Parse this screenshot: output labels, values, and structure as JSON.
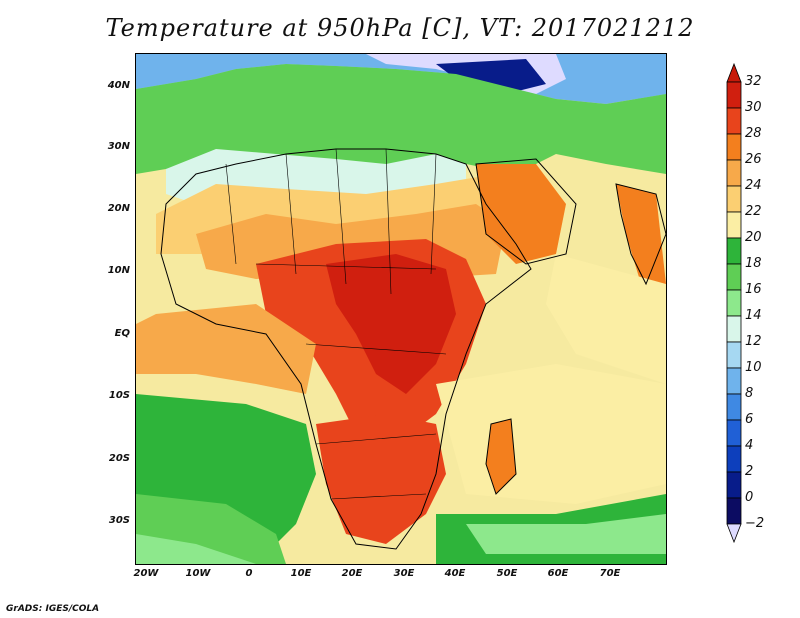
{
  "title": "Temperature at 950hPa [C], VT: 2017021212",
  "credit": "GrADS: IGES/COLA",
  "map": {
    "variable": "Temperature at 950hPa",
    "units": "C",
    "valid_time": "2017021212",
    "region": "Africa / Middle East",
    "lat_labels": [
      "40N",
      "30N",
      "20N",
      "10N",
      "EQ",
      "10S",
      "20S",
      "30S"
    ],
    "lon_labels": [
      "20W",
      "10W",
      "0",
      "10E",
      "20E",
      "30E",
      "40E",
      "50E",
      "60E",
      "70E"
    ],
    "lat_values": [
      40,
      30,
      20,
      10,
      0,
      -10,
      -20,
      -30
    ],
    "lon_values": [
      -20,
      -10,
      0,
      10,
      20,
      30,
      40,
      50,
      60,
      70
    ],
    "lat_range": [
      -36.5,
      45
    ],
    "lon_range": [
      -23,
      80
    ]
  },
  "legend": {
    "levels": [
      "32",
      "30",
      "28",
      "26",
      "24",
      "22",
      "20",
      "18",
      "16",
      "14",
      "12",
      "10",
      "8",
      "6",
      "4",
      "2",
      "0",
      "−2"
    ],
    "colors": [
      "#d01f0f",
      "#e8441c",
      "#f37f1e",
      "#f7a94a",
      "#fbcf72",
      "#fbeea4",
      "#2eb43a",
      "#5fce55",
      "#8de88c",
      "#d9f6ea",
      "#a6d8f2",
      "#6fb3ec",
      "#3f89e3",
      "#2060d6",
      "#0d3fbc",
      "#081c8a",
      "#0c0c62",
      "#dedbff"
    ],
    "over_color": "#c81a0a",
    "under_color": "#dedbff"
  }
}
